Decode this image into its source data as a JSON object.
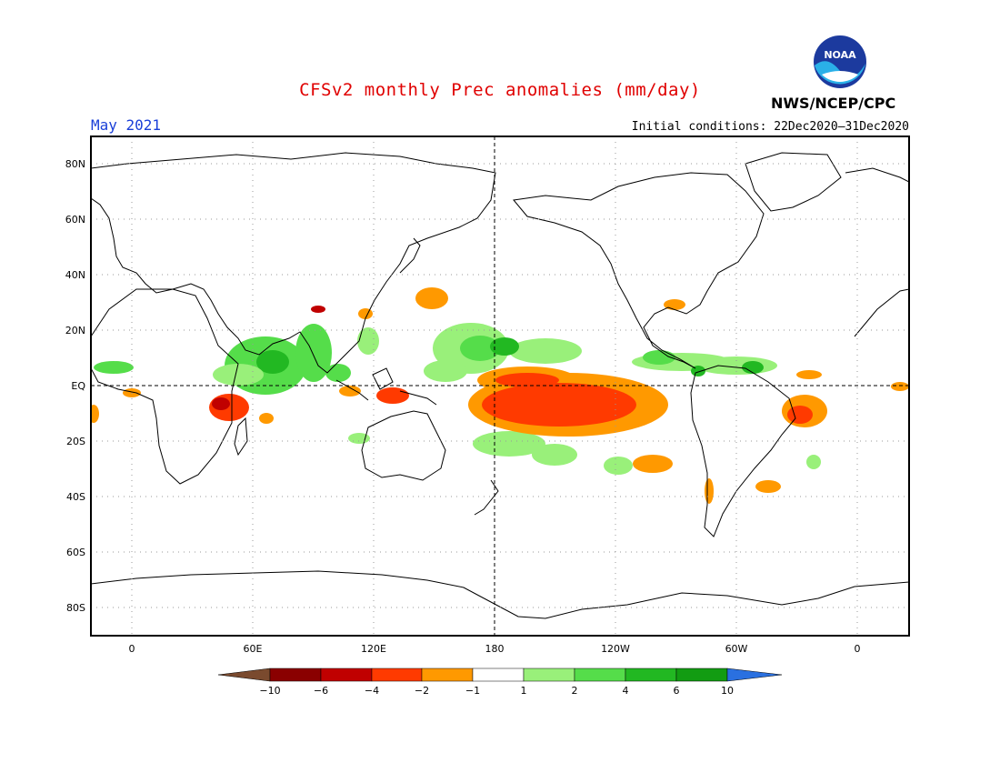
{
  "header": {
    "title": "CFSv2 monthly Prec anomalies (mm/day)",
    "month": "May 2021",
    "initial_conditions": "Initial conditions: 22Dec2020–31Dec2020",
    "agency": "NWS/NCEP/CPC",
    "logo_text": "NOAA"
  },
  "map": {
    "lat_labels": [
      "80N",
      "60N",
      "40N",
      "20N",
      "EQ",
      "20S",
      "40S",
      "60S",
      "80S"
    ],
    "lon_labels": [
      "0",
      "60E",
      "120E",
      "180",
      "120W",
      "60W",
      "0"
    ],
    "dateline_label": "180",
    "equator_label": "EQ"
  },
  "legend": {
    "tick_labels": [
      "−10",
      "−6",
      "−4",
      "−2",
      "−1",
      "1",
      "2",
      "4",
      "6",
      "10"
    ],
    "colors": [
      "#8a0000",
      "#c00000",
      "#ff3a00",
      "#ff9900",
      "#ffffff",
      "#99f07a",
      "#55dd4a",
      "#22b822",
      "#129c12"
    ],
    "under_color": "#7a4a2e",
    "over_color": "#2a70e0"
  }
}
